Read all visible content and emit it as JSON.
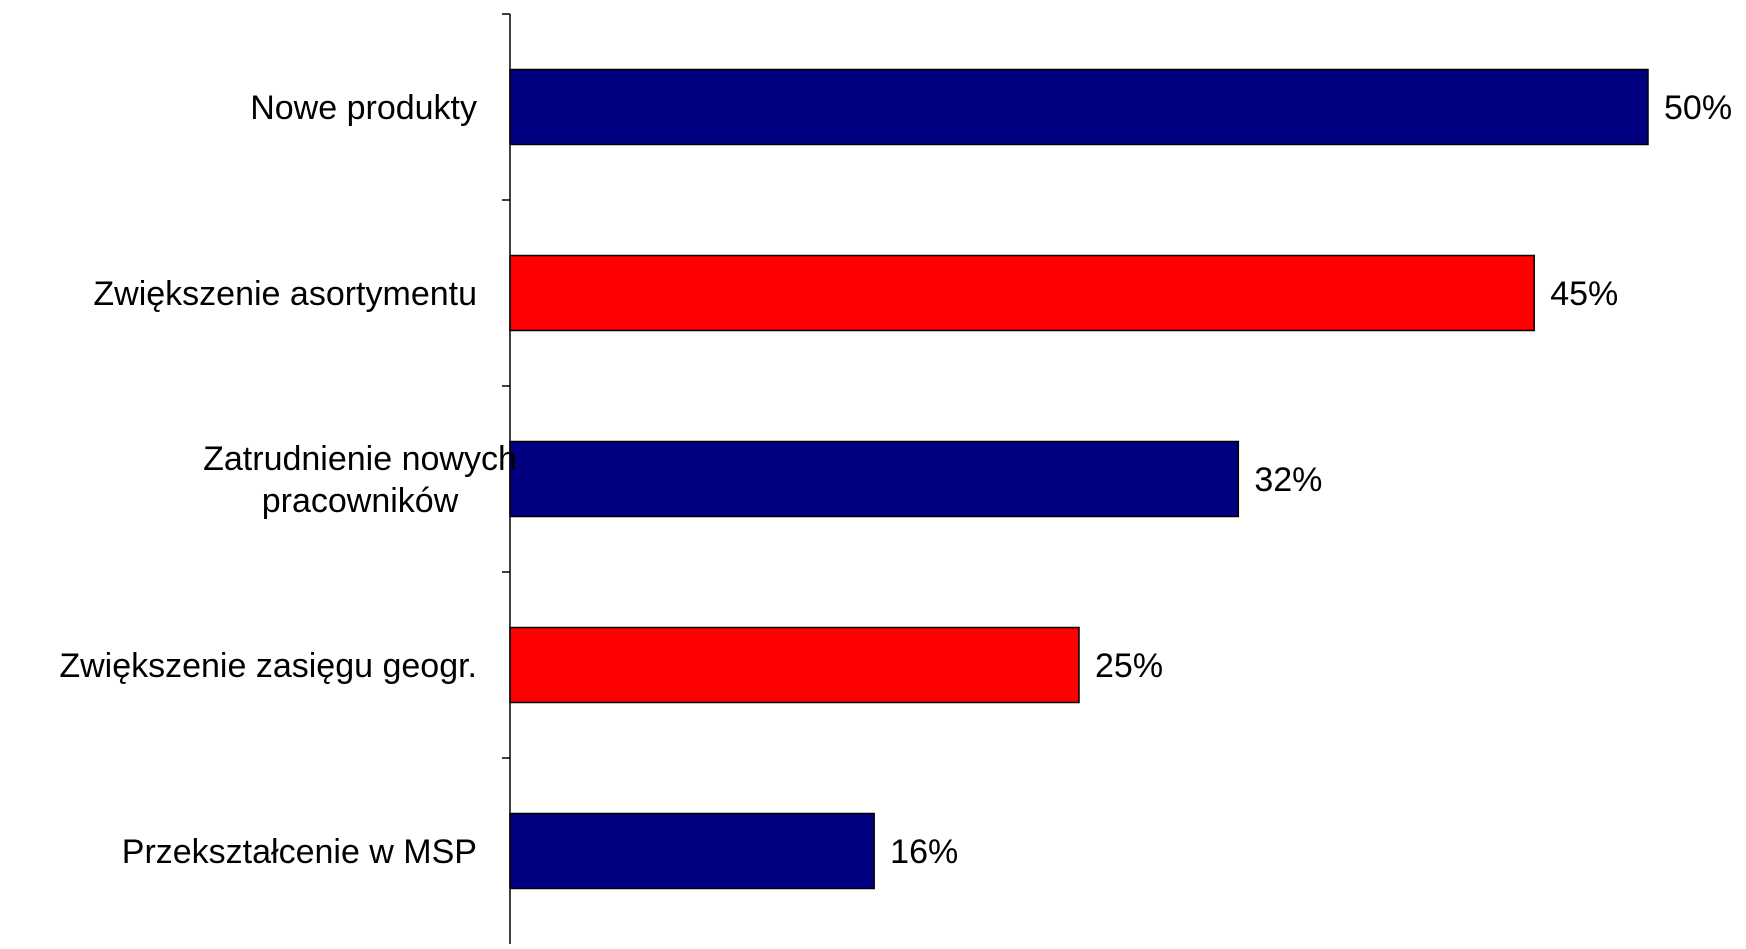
{
  "chart_data": {
    "type": "bar",
    "orientation": "horizontal",
    "categories": [
      [
        "Nowe produkty"
      ],
      [
        "Zwiększenie asortymentu"
      ],
      [
        "Zatrudnienie nowych",
        "pracowników"
      ],
      [
        "Zwiększenie zasięgu geogr."
      ],
      [
        "Przekształcenie w MSP"
      ]
    ],
    "values": [
      50,
      45,
      32,
      25,
      16
    ],
    "value_labels": [
      "50%",
      "45%",
      "32%",
      "25%",
      "16%"
    ],
    "bar_colors": [
      "#000080",
      "#ff0000",
      "#000080",
      "#ff0000",
      "#000080"
    ],
    "xlim": [
      0,
      50
    ],
    "unit": "%",
    "grid": false,
    "legend": "none",
    "title": "",
    "xlabel": "",
    "ylabel": ""
  }
}
